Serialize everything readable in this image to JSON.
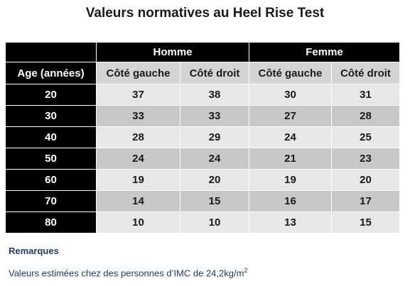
{
  "title": "Valeurs normatives au Heel Rise Test",
  "table": {
    "groups": [
      "Homme",
      "Femme"
    ],
    "age_header": "Age (années)",
    "sub_headers": [
      "Côté gauche",
      "Côté droit",
      "Côté gauche",
      "Côté droit"
    ],
    "rows": [
      {
        "age": "20",
        "values": [
          "37",
          "38",
          "30",
          "31"
        ]
      },
      {
        "age": "30",
        "values": [
          "33",
          "33",
          "27",
          "28"
        ]
      },
      {
        "age": "40",
        "values": [
          "28",
          "29",
          "24",
          "25"
        ]
      },
      {
        "age": "50",
        "values": [
          "24",
          "24",
          "21",
          "23"
        ]
      },
      {
        "age": "60",
        "values": [
          "19",
          "20",
          "19",
          "20"
        ]
      },
      {
        "age": "70",
        "values": [
          "14",
          "15",
          "16",
          "17"
        ]
      },
      {
        "age": "80",
        "values": [
          "10",
          "10",
          "13",
          "15"
        ]
      }
    ]
  },
  "remarks": {
    "title": "Remarques",
    "text_prefix": "Valeurs estimées chez des personnes d’IMC de 24,2kg/m",
    "text_sup": "2"
  }
}
